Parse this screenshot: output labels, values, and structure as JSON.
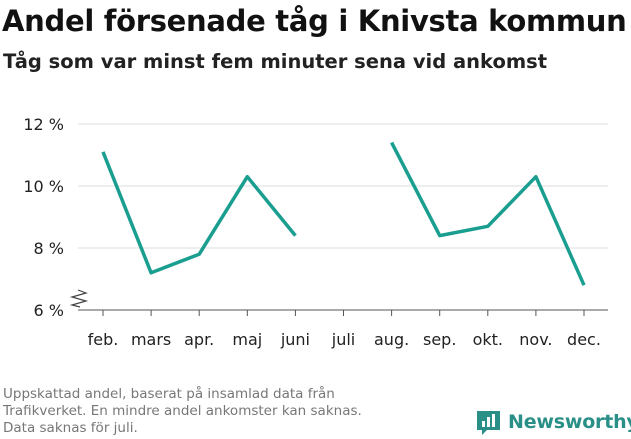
{
  "chart_data": {
    "type": "line",
    "title": "Andel försenade tåg i Knivsta kommun",
    "subtitle": "Tåg som var minst fem minuter sena vid ankomst",
    "categories": [
      "feb.",
      "mars",
      "apr.",
      "maj",
      "juni",
      "juli",
      "aug.",
      "sep.",
      "okt.",
      "nov.",
      "dec."
    ],
    "series": [
      {
        "values": [
          11.1,
          7.2,
          7.8,
          10.3,
          8.4,
          null,
          11.4,
          8.4,
          8.7,
          10.3,
          6.8
        ]
      }
    ],
    "y_ticks": [
      6,
      8,
      10,
      12
    ],
    "y_tick_labels": [
      "6 %",
      "8 %",
      "10 %",
      "12 %"
    ],
    "ylim": [
      6,
      12.2
    ],
    "axis_break": true,
    "grid": true,
    "line_color": "#1a9e8f",
    "grid_color": "#dddddd"
  },
  "footnote": [
    "Uppskattad andel, baserat på insamlad data från",
    "Trafikverket. En mindre andel ankomster kan saknas.",
    "Data saknas för juli."
  ],
  "brand": {
    "name": "Newsworthy",
    "icon": "bar-chart-icon",
    "color": "#2a8f86"
  }
}
